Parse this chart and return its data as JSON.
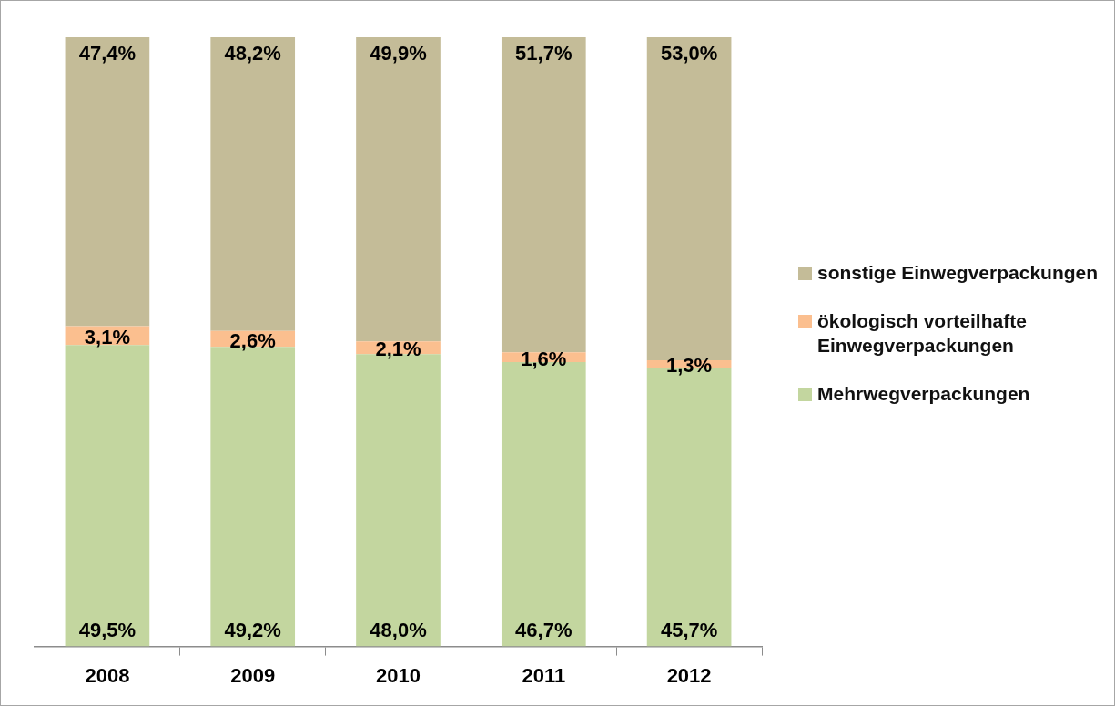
{
  "chart_data": {
    "type": "bar",
    "stacked": true,
    "categories": [
      "2008",
      "2009",
      "2010",
      "2011",
      "2012"
    ],
    "series": [
      {
        "name": "Mehrwegverpackungen",
        "color": "#c3d69f",
        "values": [
          49.5,
          49.2,
          48.0,
          46.7,
          45.7
        ],
        "value_labels": [
          "49,5%",
          "49,2%",
          "48,0%",
          "46,7%",
          "45,7%"
        ]
      },
      {
        "name": "ökologisch vorteilhafte Einwegverpackungen",
        "color": "#fbbf8f",
        "values": [
          3.1,
          2.6,
          2.1,
          1.6,
          1.3
        ],
        "value_labels": [
          "3,1%",
          "2,6%",
          "2,1%",
          "1,6%",
          "1,3%"
        ]
      },
      {
        "name": "sonstige Einwegverpackungen",
        "color": "#c4bc98",
        "values": [
          47.4,
          48.2,
          49.9,
          51.7,
          53.0
        ],
        "value_labels": [
          "47,4%",
          "48,2%",
          "49,9%",
          "51,7%",
          "53,0%"
        ]
      }
    ],
    "legend": "right",
    "grid": false
  }
}
